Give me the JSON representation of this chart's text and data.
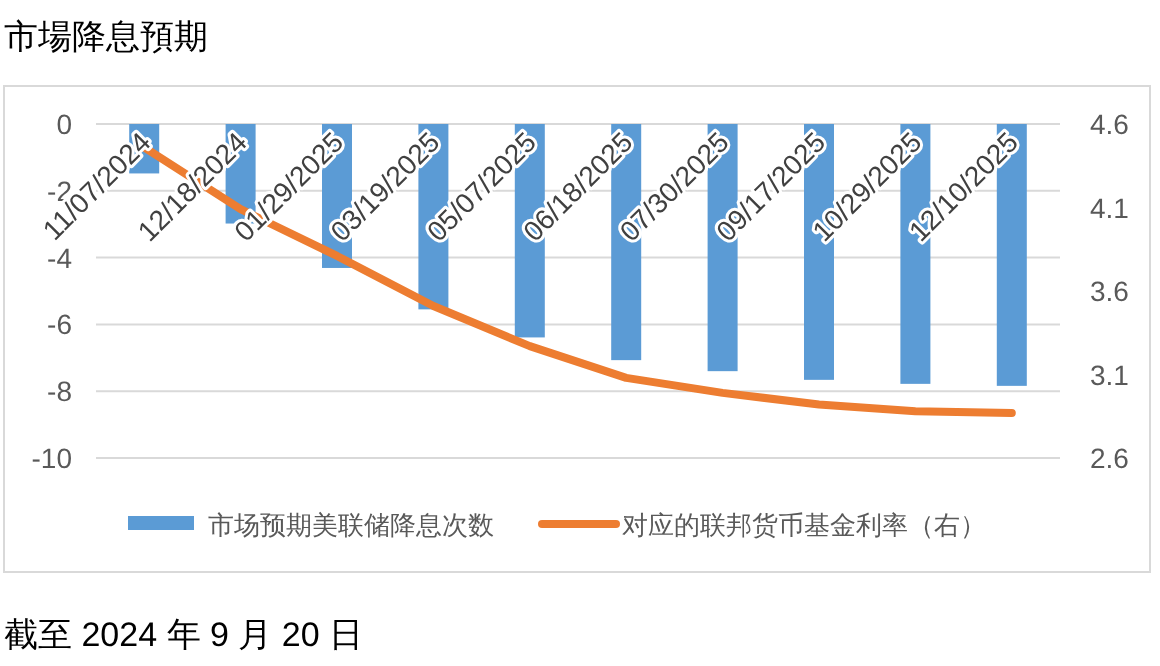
{
  "chart_data": {
    "type": "bar",
    "title": "市場降息預期",
    "categories": [
      "11/07/2024",
      "12/18/2024",
      "01/29/2025",
      "03/19/2025",
      "05/07/2025",
      "06/18/2025",
      "07/30/2025",
      "09/17/2025",
      "10/29/2025",
      "12/10/2025"
    ],
    "series": [
      {
        "name": "市场预期美联储降息次数",
        "color": "#5b9bd5",
        "values": [
          -1.48,
          -2.98,
          -4.31,
          -5.55,
          -6.39,
          -7.07,
          -7.4,
          -7.66,
          -7.78,
          -7.84
        ]
      },
      {
        "name": "对应的联邦货币基金利率（右）",
        "type": "line",
        "axis": "y2",
        "color": "#ed7d31",
        "values": [
          4.46,
          4.09,
          3.81,
          3.51,
          3.27,
          3.08,
          2.99,
          2.92,
          2.88,
          2.87
        ]
      }
    ],
    "ylim": [
      -10,
      0
    ],
    "yticks": [
      -10,
      -8,
      -6,
      -4,
      -2,
      0
    ],
    "y2lim": [
      2.6,
      4.6
    ],
    "y2ticks": [
      2.6,
      3.1,
      3.6,
      4.1,
      4.6
    ],
    "grid": "y",
    "legend": "bottom",
    "annotations": [
      "截至 2024 年 9 月 20 日"
    ]
  }
}
